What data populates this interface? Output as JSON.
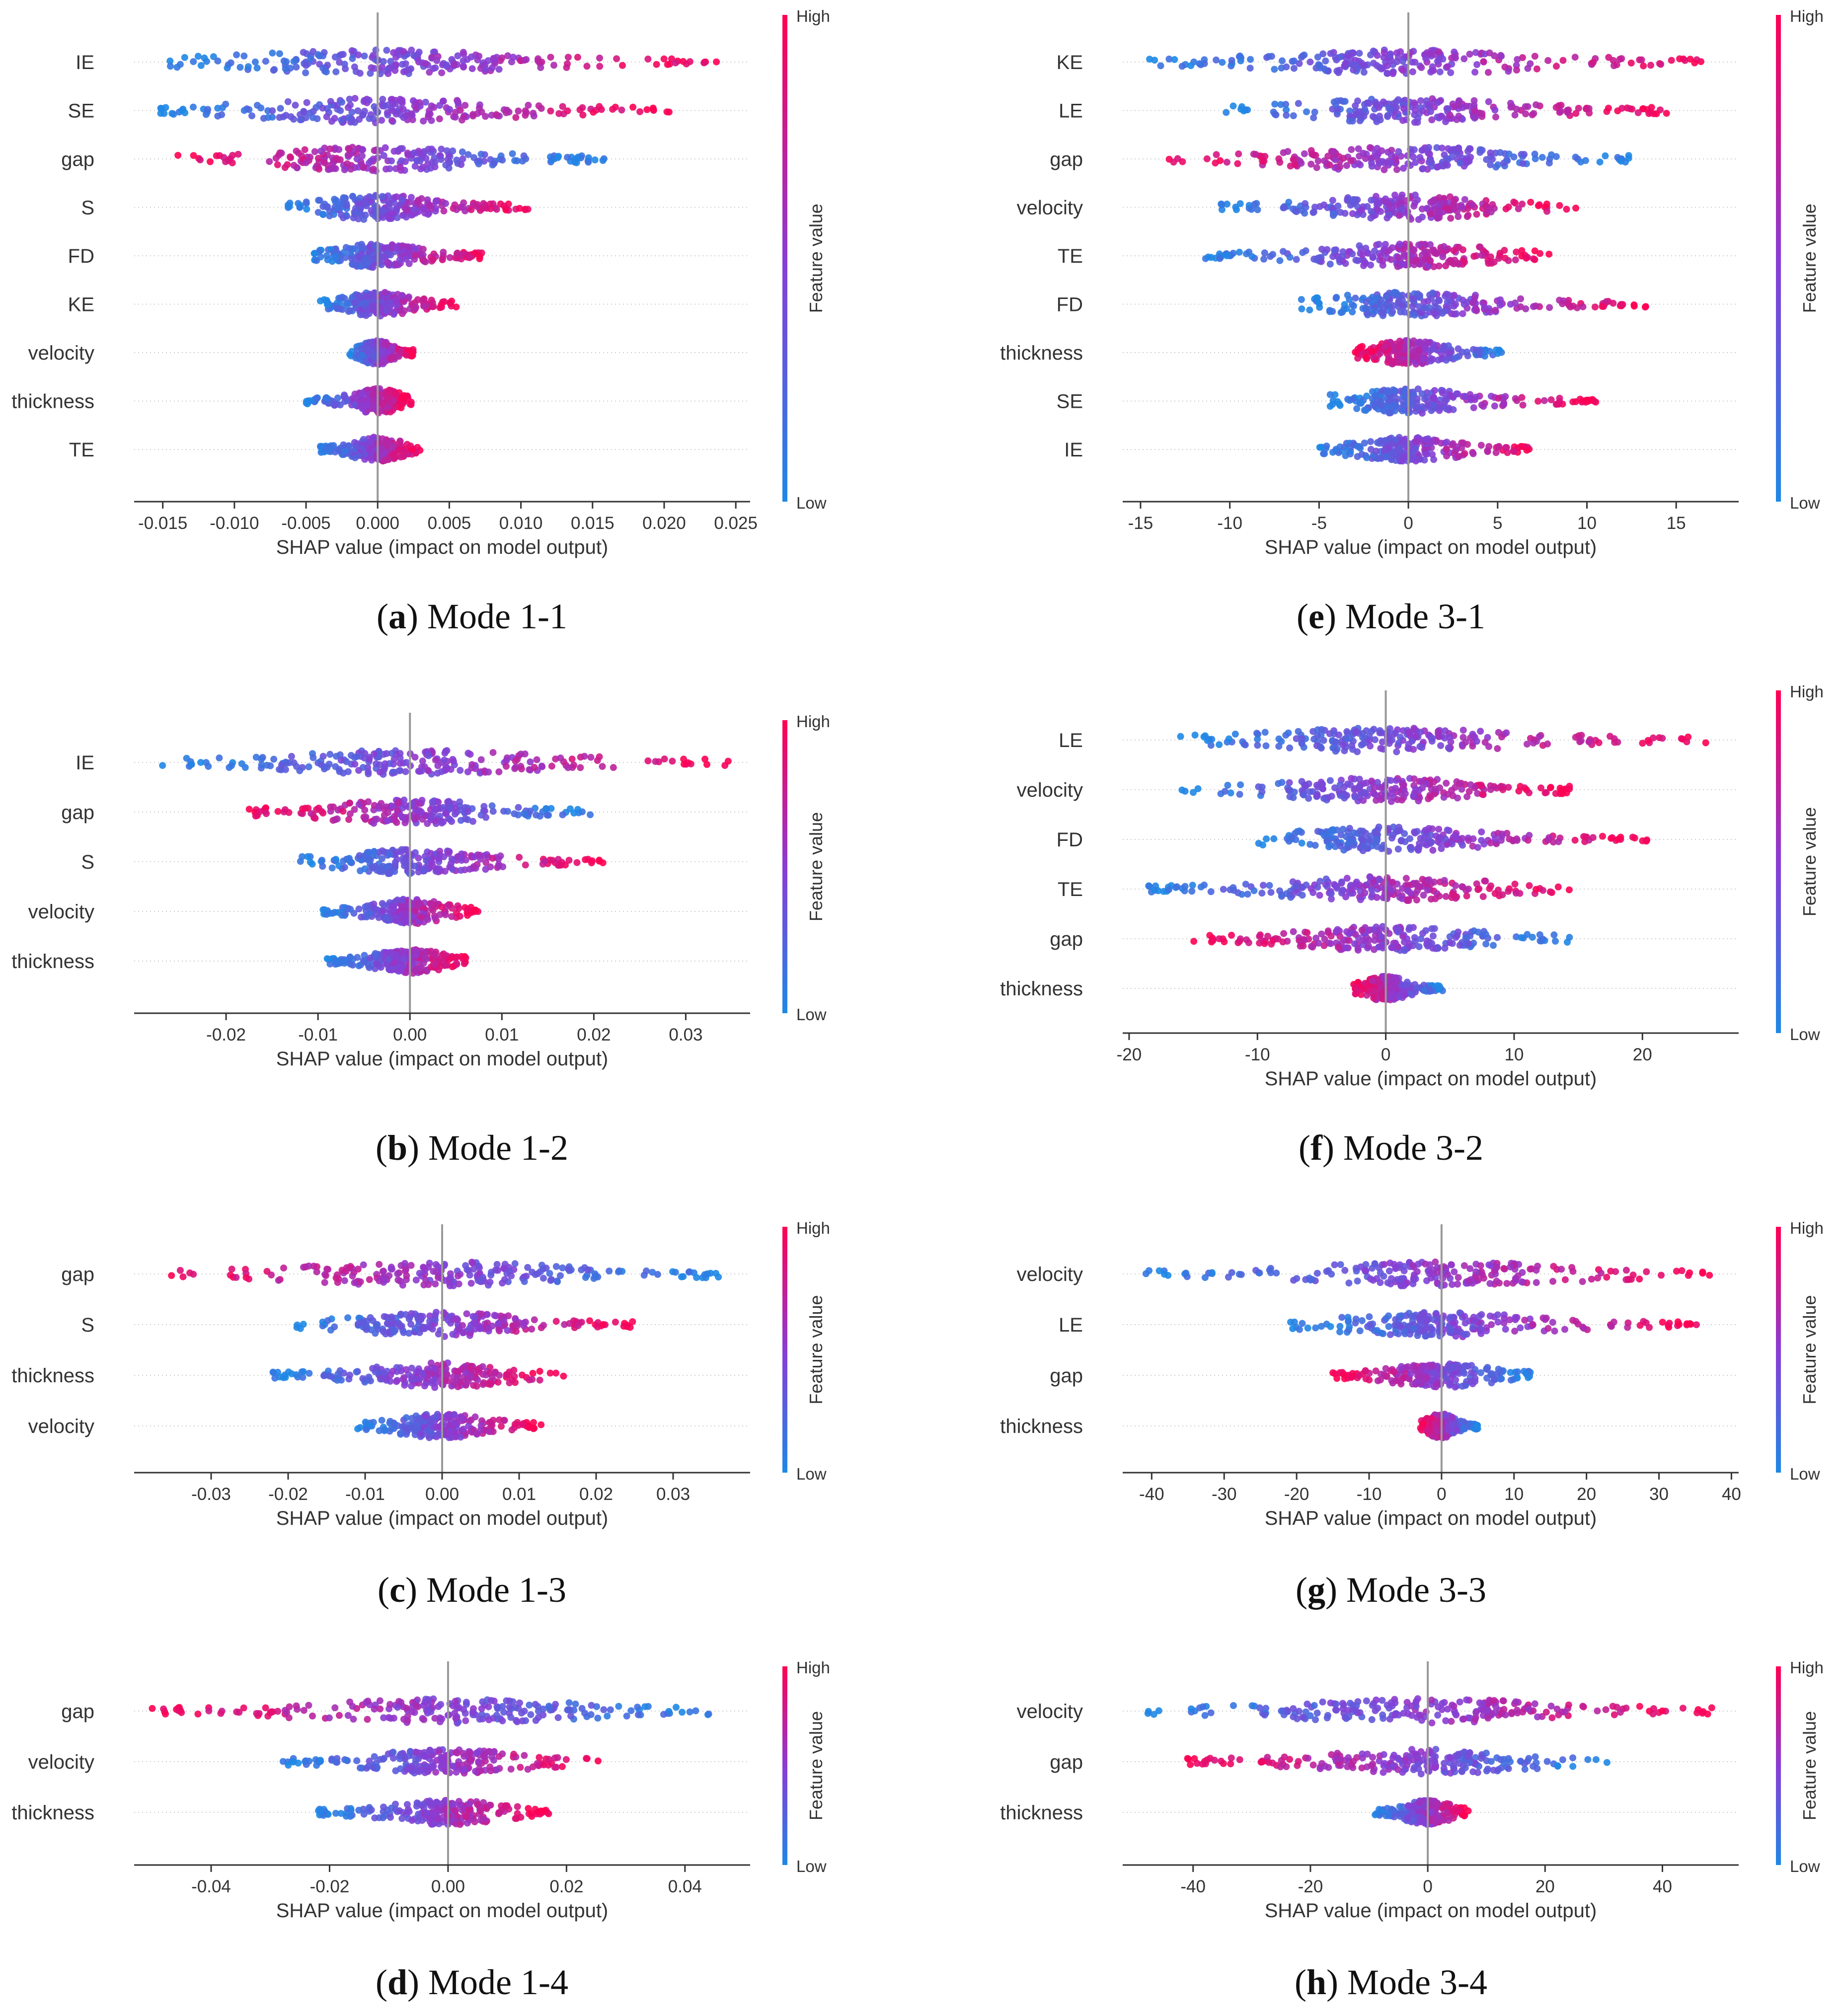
{
  "chart_data": [
    {
      "id": "a",
      "type": "scatter",
      "subtype": "shap-beeswarm",
      "caption_letter": "a",
      "caption_text": "Mode 1-1",
      "xlabel": "SHAP value (impact on model output)",
      "xlim": [
        -0.017,
        0.026
      ],
      "xticks": [
        -0.015,
        -0.01,
        -0.005,
        0.0,
        0.005,
        0.01,
        0.015,
        0.02,
        0.025
      ],
      "xtick_labels": [
        "-0.015",
        "-0.010",
        "-0.005",
        "0.000",
        "0.005",
        "0.010",
        "0.015",
        "0.020",
        "0.025"
      ],
      "colorbar": {
        "high": "High",
        "low": "Low",
        "label": "Feature value"
      },
      "features": [
        {
          "name": "IE",
          "min": -0.0148,
          "max": 0.024,
          "dir": 1
        },
        {
          "name": "SE",
          "min": -0.0152,
          "max": 0.0205,
          "dir": 1
        },
        {
          "name": "gap",
          "min": -0.014,
          "max": 0.016,
          "dir": -1
        },
        {
          "name": "S",
          "min": -0.0063,
          "max": 0.0105,
          "dir": 1
        },
        {
          "name": "FD",
          "min": -0.0045,
          "max": 0.0075,
          "dir": 1
        },
        {
          "name": "KE",
          "min": -0.004,
          "max": 0.0055,
          "dir": 1
        },
        {
          "name": "velocity",
          "min": -0.002,
          "max": 0.0025,
          "dir": 1
        },
        {
          "name": "thickness",
          "min": -0.005,
          "max": 0.0025,
          "dir": 1
        },
        {
          "name": "TE",
          "min": -0.004,
          "max": 0.003,
          "dir": 1
        }
      ]
    },
    {
      "id": "b",
      "type": "scatter",
      "subtype": "shap-beeswarm",
      "caption_letter": "b",
      "caption_text": "Mode 1-2",
      "xlabel": "SHAP value (impact on model output)",
      "xlim": [
        -0.03,
        0.037
      ],
      "xticks": [
        -0.02,
        -0.01,
        0.0,
        0.01,
        0.02,
        0.03
      ],
      "xtick_labels": [
        "-0.02",
        "-0.01",
        "0.00",
        "0.01",
        "0.02",
        "0.03"
      ],
      "colorbar": {
        "high": "High",
        "low": "Low",
        "label": "Feature value"
      },
      "features": [
        {
          "name": "IE",
          "min": -0.027,
          "max": 0.035,
          "dir": 1
        },
        {
          "name": "gap",
          "min": -0.0175,
          "max": 0.02,
          "dir": -1
        },
        {
          "name": "S",
          "min": -0.012,
          "max": 0.021,
          "dir": 1
        },
        {
          "name": "velocity",
          "min": -0.0095,
          "max": 0.0075,
          "dir": 1
        },
        {
          "name": "thickness",
          "min": -0.009,
          "max": 0.0065,
          "dir": 1
        }
      ]
    },
    {
      "id": "c",
      "type": "scatter",
      "subtype": "shap-beeswarm",
      "caption_letter": "c",
      "caption_text": "Mode 1-3",
      "xlabel": "SHAP value (impact on model output)",
      "xlim": [
        -0.04,
        0.04
      ],
      "xticks": [
        -0.03,
        -0.02,
        -0.01,
        0.0,
        0.01,
        0.02,
        0.03
      ],
      "xtick_labels": [
        "-0.03",
        "-0.02",
        "-0.01",
        "0.00",
        "0.01",
        "0.02",
        "0.03"
      ],
      "colorbar": {
        "high": "High",
        "low": "Low",
        "label": "Feature value"
      },
      "features": [
        {
          "name": "gap",
          "min": -0.036,
          "max": 0.036,
          "dir": -1
        },
        {
          "name": "S",
          "min": -0.019,
          "max": 0.025,
          "dir": 1
        },
        {
          "name": "thickness",
          "min": -0.022,
          "max": 0.016,
          "dir": 1
        },
        {
          "name": "velocity",
          "min": -0.011,
          "max": 0.013,
          "dir": 1
        }
      ]
    },
    {
      "id": "d",
      "type": "scatter",
      "subtype": "shap-beeswarm",
      "caption_letter": "d",
      "caption_text": "Mode 1-4",
      "xlabel": "SHAP value (impact on model output)",
      "xlim": [
        -0.053,
        0.051
      ],
      "xticks": [
        -0.04,
        -0.02,
        0.0,
        0.02,
        0.04
      ],
      "xtick_labels": [
        "-0.04",
        "-0.02",
        "0.00",
        "0.02",
        "0.04"
      ],
      "colorbar": {
        "high": "High",
        "low": "Low",
        "label": "Feature value"
      },
      "features": [
        {
          "name": "gap",
          "min": -0.05,
          "max": 0.045,
          "dir": -1
        },
        {
          "name": "velocity",
          "min": -0.028,
          "max": 0.026,
          "dir": 1
        },
        {
          "name": "thickness",
          "min": -0.022,
          "max": 0.017,
          "dir": 1
        }
      ]
    },
    {
      "id": "e",
      "type": "scatter",
      "subtype": "shap-beeswarm",
      "caption_letter": "e",
      "caption_text": "Mode 3-1",
      "xlabel": "SHAP value (impact on model output)",
      "xlim": [
        -16,
        18.5
      ],
      "xticks": [
        -15,
        -10,
        -5,
        0,
        5,
        10,
        15
      ],
      "xtick_labels": [
        "-15",
        "-10",
        "-5",
        "0",
        "5",
        "10",
        "15"
      ],
      "colorbar": {
        "high": "High",
        "low": "Low",
        "label": "Feature value"
      },
      "features": [
        {
          "name": "KE",
          "min": -14.5,
          "max": 17,
          "dir": 1
        },
        {
          "name": "LE",
          "min": -10.5,
          "max": 14.5,
          "dir": 1
        },
        {
          "name": "gap",
          "min": -13.5,
          "max": 12.5,
          "dir": -1
        },
        {
          "name": "velocity",
          "min": -10.5,
          "max": 9.5,
          "dir": 1
        },
        {
          "name": "TE",
          "min": -11.5,
          "max": 8,
          "dir": 1
        },
        {
          "name": "FD",
          "min": -6,
          "max": 13.5,
          "dir": 1
        },
        {
          "name": "thickness",
          "min": -3,
          "max": 5.5,
          "dir": -1
        },
        {
          "name": "SE",
          "min": -4.5,
          "max": 10.5,
          "dir": 1
        },
        {
          "name": "IE",
          "min": -5,
          "max": 7,
          "dir": 1
        }
      ]
    },
    {
      "id": "f",
      "type": "scatter",
      "subtype": "shap-beeswarm",
      "caption_letter": "f",
      "caption_text": "Mode 3-2",
      "xlabel": "SHAP value (impact on model output)",
      "xlim": [
        -20.5,
        27.5
      ],
      "xticks": [
        -20,
        -10,
        0,
        10,
        20
      ],
      "xtick_labels": [
        "-20",
        "-10",
        "0",
        "10",
        "20"
      ],
      "colorbar": {
        "high": "High",
        "low": "Low",
        "label": "Feature value"
      },
      "features": [
        {
          "name": "LE",
          "min": -16,
          "max": 25,
          "dir": 1
        },
        {
          "name": "velocity",
          "min": -16,
          "max": 14.5,
          "dir": 1
        },
        {
          "name": "FD",
          "min": -10,
          "max": 21,
          "dir": 1
        },
        {
          "name": "TE",
          "min": -18.5,
          "max": 14.5,
          "dir": 1
        },
        {
          "name": "gap",
          "min": -15,
          "max": 14.5,
          "dir": -1
        },
        {
          "name": "thickness",
          "min": -2.5,
          "max": 4.5,
          "dir": -1
        }
      ]
    },
    {
      "id": "g",
      "type": "scatter",
      "subtype": "shap-beeswarm",
      "caption_letter": "g",
      "caption_text": "Mode 3-3",
      "xlabel": "SHAP value (impact on model output)",
      "xlim": [
        -44,
        41
      ],
      "xticks": [
        -40,
        -30,
        -20,
        -10,
        0,
        10,
        20,
        30,
        40
      ],
      "xtick_labels": [
        "-40",
        "-30",
        "-20",
        "-10",
        "0",
        "10",
        "20",
        "30",
        "40"
      ],
      "colorbar": {
        "high": "High",
        "low": "Low",
        "label": "Feature value"
      },
      "features": [
        {
          "name": "velocity",
          "min": -41,
          "max": 37,
          "dir": 1
        },
        {
          "name": "LE",
          "min": -21,
          "max": 35.5,
          "dir": 1
        },
        {
          "name": "gap",
          "min": -15,
          "max": 13,
          "dir": -1
        },
        {
          "name": "thickness",
          "min": -3,
          "max": 5,
          "dir": -1
        }
      ]
    },
    {
      "id": "h",
      "type": "scatter",
      "subtype": "shap-beeswarm",
      "caption_letter": "h",
      "caption_text": "Mode 3-4",
      "xlabel": "SHAP value (impact on model output)",
      "xlim": [
        -52,
        53
      ],
      "xticks": [
        -40,
        -20,
        0,
        20,
        40
      ],
      "xtick_labels": [
        "-40",
        "-20",
        "0",
        "20",
        "40"
      ],
      "colorbar": {
        "high": "High",
        "low": "Low",
        "label": "Feature value"
      },
      "features": [
        {
          "name": "velocity",
          "min": -48,
          "max": 49,
          "dir": 1
        },
        {
          "name": "gap",
          "min": -41,
          "max": 31,
          "dir": -1
        },
        {
          "name": "thickness",
          "min": -9,
          "max": 7,
          "dir": 1
        }
      ]
    }
  ],
  "colors": {
    "low": "#1e88e5",
    "mid": "#8a3cd4",
    "high": "#ff0052",
    "zero_line": "#999999",
    "grid": "#cccccc",
    "axis": "#333333"
  }
}
